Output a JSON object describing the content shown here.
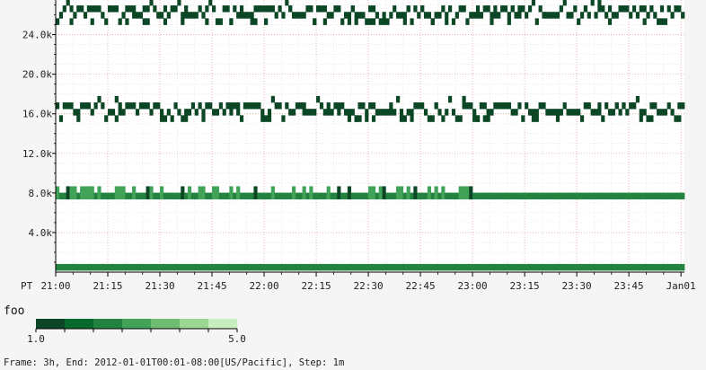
{
  "chart_data": {
    "type": "heatmap",
    "title": "",
    "xlabel": "",
    "ylabel": "",
    "timezone_label": "PT",
    "x_tick_labels": [
      "21:00",
      "21:15",
      "21:30",
      "21:45",
      "22:00",
      "22:15",
      "22:30",
      "22:45",
      "23:00",
      "23:15",
      "23:30",
      "23:45",
      "Jan01"
    ],
    "x_range": [
      "21:00",
      "00:01"
    ],
    "y_tick_labels": [
      "4.0k",
      "8.0k",
      "12.0k",
      "16.0k",
      "20.0k",
      "24.0k"
    ],
    "y_ticks": [
      4000,
      8000,
      12000,
      16000,
      20000,
      24000
    ],
    "ylim": [
      0,
      27500
    ],
    "y_bucket_size": 650,
    "grid": true,
    "legend": {
      "title": "foo",
      "min_label": "1.0",
      "max_label": "5.0",
      "colors": [
        "#0b4725",
        "#08692c",
        "#22823f",
        "#41a357",
        "#6fbd72",
        "#9bd793",
        "#c8edc0"
      ]
    },
    "bands": [
      {
        "y_center": 500,
        "pattern": "solid",
        "color_index": 2
      },
      {
        "y_center": 7700,
        "pattern": "mixed-low",
        "color_index": 2
      },
      {
        "y_center": 16500,
        "pattern": "scattered",
        "color_index": 0
      },
      {
        "y_center": 26300,
        "pattern": "scattered",
        "color_index": 0
      }
    ],
    "footer": "Frame: 3h, End: 2012-01-01T00:01-08:00[US/Pacific], Step: 1m"
  }
}
